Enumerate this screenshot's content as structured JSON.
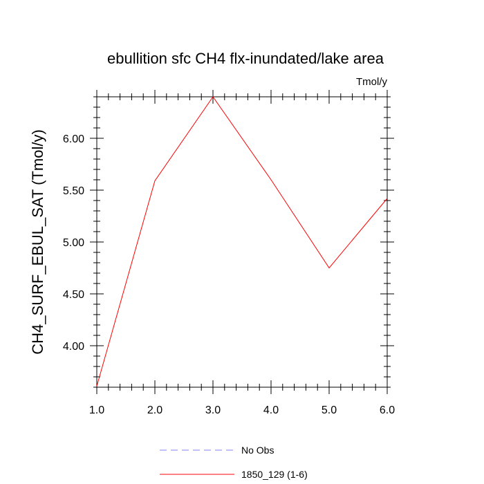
{
  "chart_data": {
    "type": "line",
    "title": "ebullition sfc CH4 flx-inundated/lake area",
    "units": "Tmol/y",
    "xlabel": "",
    "ylabel": "CH4_SURF_EBUL_SAT  (Tmol/y)",
    "xlim": [
      1.0,
      6.0
    ],
    "ylim": [
      3.6,
      6.4
    ],
    "x_ticks": [
      "1.0",
      "2.0",
      "3.0",
      "4.0",
      "5.0",
      "6.0"
    ],
    "x_tick_values": [
      1,
      2,
      3,
      4,
      5,
      6
    ],
    "y_ticks": [
      "4.00",
      "4.50",
      "5.00",
      "5.50",
      "6.00"
    ],
    "y_tick_values": [
      4.0,
      4.5,
      5.0,
      5.5,
      6.0
    ],
    "grid": false,
    "legend_position": "bottom-center",
    "series": [
      {
        "name": "No Obs",
        "color": "#8080ff",
        "dash": "dashed",
        "x": [],
        "values": []
      },
      {
        "name": "1850_129 (1-6)",
        "color": "#ff0000",
        "dash": "solid",
        "x": [
          1,
          2,
          3,
          4,
          5,
          6
        ],
        "values": [
          3.61,
          5.59,
          6.4,
          5.6,
          4.75,
          5.42
        ]
      }
    ]
  }
}
